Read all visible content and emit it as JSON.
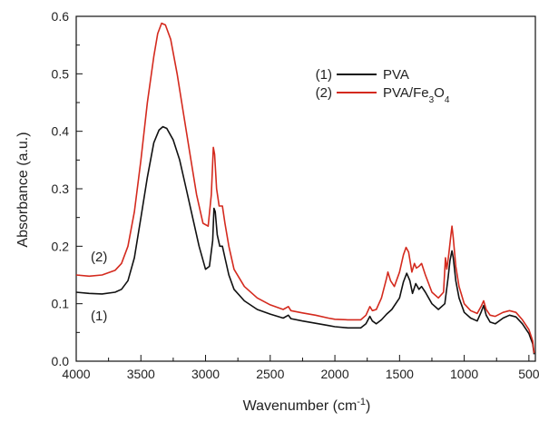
{
  "chart_data": {
    "type": "line",
    "xlabel": "Wavenumber (cm-1)",
    "xlabel_parts": {
      "main": "Wavenumber (cm",
      "sup": "-1",
      "close": ")"
    },
    "ylabel": "Absorbance (a.u.)",
    "xlim": [
      4000,
      450
    ],
    "x_reversed": true,
    "ylim": [
      0.0,
      0.6
    ],
    "x_ticks": [
      4000,
      3500,
      3000,
      2500,
      2000,
      1500,
      1000,
      500
    ],
    "y_ticks": [
      "0.0",
      "0.1",
      "0.2",
      "0.3",
      "0.4",
      "0.5",
      "0.6"
    ],
    "legend_position": "top-right",
    "grid": false,
    "curve_labels": [
      "(2)",
      "(1)"
    ],
    "series": [
      {
        "name": "PVA",
        "legend_tag": "(1)",
        "color": "#111111",
        "points": [
          [
            4000,
            0.12
          ],
          [
            3900,
            0.118
          ],
          [
            3800,
            0.117
          ],
          [
            3700,
            0.12
          ],
          [
            3650,
            0.125
          ],
          [
            3600,
            0.14
          ],
          [
            3550,
            0.18
          ],
          [
            3500,
            0.25
          ],
          [
            3450,
            0.32
          ],
          [
            3400,
            0.38
          ],
          [
            3360,
            0.402
          ],
          [
            3330,
            0.408
          ],
          [
            3300,
            0.405
          ],
          [
            3250,
            0.385
          ],
          [
            3200,
            0.35
          ],
          [
            3150,
            0.3
          ],
          [
            3100,
            0.25
          ],
          [
            3050,
            0.2
          ],
          [
            3000,
            0.16
          ],
          [
            2970,
            0.165
          ],
          [
            2945,
            0.21
          ],
          [
            2935,
            0.266
          ],
          [
            2925,
            0.26
          ],
          [
            2910,
            0.22
          ],
          [
            2890,
            0.2
          ],
          [
            2870,
            0.2
          ],
          [
            2850,
            0.18
          ],
          [
            2820,
            0.15
          ],
          [
            2780,
            0.125
          ],
          [
            2700,
            0.105
          ],
          [
            2600,
            0.09
          ],
          [
            2500,
            0.082
          ],
          [
            2400,
            0.075
          ],
          [
            2360,
            0.08
          ],
          [
            2340,
            0.074
          ],
          [
            2250,
            0.07
          ],
          [
            2150,
            0.066
          ],
          [
            2050,
            0.062
          ],
          [
            2000,
            0.06
          ],
          [
            1900,
            0.058
          ],
          [
            1800,
            0.058
          ],
          [
            1760,
            0.065
          ],
          [
            1730,
            0.078
          ],
          [
            1710,
            0.07
          ],
          [
            1680,
            0.065
          ],
          [
            1640,
            0.072
          ],
          [
            1600,
            0.082
          ],
          [
            1560,
            0.09
          ],
          [
            1500,
            0.11
          ],
          [
            1470,
            0.138
          ],
          [
            1445,
            0.153
          ],
          [
            1420,
            0.14
          ],
          [
            1400,
            0.118
          ],
          [
            1375,
            0.135
          ],
          [
            1350,
            0.125
          ],
          [
            1330,
            0.13
          ],
          [
            1300,
            0.12
          ],
          [
            1250,
            0.1
          ],
          [
            1200,
            0.09
          ],
          [
            1150,
            0.1
          ],
          [
            1125,
            0.145
          ],
          [
            1110,
            0.175
          ],
          [
            1095,
            0.192
          ],
          [
            1085,
            0.18
          ],
          [
            1065,
            0.14
          ],
          [
            1040,
            0.11
          ],
          [
            1000,
            0.085
          ],
          [
            950,
            0.075
          ],
          [
            900,
            0.07
          ],
          [
            870,
            0.085
          ],
          [
            850,
            0.097
          ],
          [
            830,
            0.08
          ],
          [
            800,
            0.068
          ],
          [
            760,
            0.065
          ],
          [
            700,
            0.075
          ],
          [
            650,
            0.08
          ],
          [
            600,
            0.077
          ],
          [
            550,
            0.065
          ],
          [
            500,
            0.048
          ],
          [
            470,
            0.03
          ],
          [
            460,
            0.012
          ]
        ]
      },
      {
        "name": "PVA/Fe3O4",
        "name_parts": {
          "pre": "PVA/Fe",
          "sub1": "3",
          "mid": "O",
          "sub2": "4"
        },
        "legend_tag": "(2)",
        "color": "#d42a1e",
        "points": [
          [
            4000,
            0.15
          ],
          [
            3900,
            0.148
          ],
          [
            3800,
            0.15
          ],
          [
            3700,
            0.158
          ],
          [
            3650,
            0.17
          ],
          [
            3600,
            0.2
          ],
          [
            3550,
            0.26
          ],
          [
            3500,
            0.35
          ],
          [
            3450,
            0.45
          ],
          [
            3400,
            0.53
          ],
          [
            3370,
            0.57
          ],
          [
            3340,
            0.588
          ],
          [
            3310,
            0.585
          ],
          [
            3270,
            0.56
          ],
          [
            3220,
            0.5
          ],
          [
            3170,
            0.43
          ],
          [
            3120,
            0.36
          ],
          [
            3070,
            0.29
          ],
          [
            3020,
            0.24
          ],
          [
            2980,
            0.235
          ],
          [
            2955,
            0.29
          ],
          [
            2940,
            0.372
          ],
          [
            2930,
            0.36
          ],
          [
            2915,
            0.3
          ],
          [
            2895,
            0.27
          ],
          [
            2870,
            0.27
          ],
          [
            2850,
            0.24
          ],
          [
            2820,
            0.2
          ],
          [
            2780,
            0.16
          ],
          [
            2700,
            0.13
          ],
          [
            2600,
            0.11
          ],
          [
            2500,
            0.098
          ],
          [
            2400,
            0.09
          ],
          [
            2360,
            0.095
          ],
          [
            2340,
            0.088
          ],
          [
            2250,
            0.084
          ],
          [
            2150,
            0.08
          ],
          [
            2050,
            0.075
          ],
          [
            2000,
            0.073
          ],
          [
            1900,
            0.072
          ],
          [
            1800,
            0.072
          ],
          [
            1760,
            0.08
          ],
          [
            1730,
            0.095
          ],
          [
            1710,
            0.088
          ],
          [
            1680,
            0.09
          ],
          [
            1640,
            0.11
          ],
          [
            1600,
            0.145
          ],
          [
            1590,
            0.155
          ],
          [
            1570,
            0.14
          ],
          [
            1540,
            0.13
          ],
          [
            1500,
            0.155
          ],
          [
            1470,
            0.185
          ],
          [
            1450,
            0.198
          ],
          [
            1430,
            0.19
          ],
          [
            1405,
            0.155
          ],
          [
            1385,
            0.17
          ],
          [
            1370,
            0.162
          ],
          [
            1350,
            0.165
          ],
          [
            1330,
            0.17
          ],
          [
            1300,
            0.15
          ],
          [
            1250,
            0.12
          ],
          [
            1200,
            0.11
          ],
          [
            1160,
            0.12
          ],
          [
            1145,
            0.18
          ],
          [
            1135,
            0.16
          ],
          [
            1120,
            0.185
          ],
          [
            1105,
            0.215
          ],
          [
            1095,
            0.235
          ],
          [
            1085,
            0.215
          ],
          [
            1065,
            0.165
          ],
          [
            1040,
            0.13
          ],
          [
            1000,
            0.1
          ],
          [
            950,
            0.088
          ],
          [
            900,
            0.083
          ],
          [
            870,
            0.095
          ],
          [
            850,
            0.105
          ],
          [
            830,
            0.09
          ],
          [
            800,
            0.08
          ],
          [
            760,
            0.078
          ],
          [
            700,
            0.085
          ],
          [
            650,
            0.088
          ],
          [
            600,
            0.085
          ],
          [
            550,
            0.072
          ],
          [
            500,
            0.055
          ],
          [
            470,
            0.035
          ],
          [
            460,
            0.014
          ]
        ]
      }
    ]
  }
}
